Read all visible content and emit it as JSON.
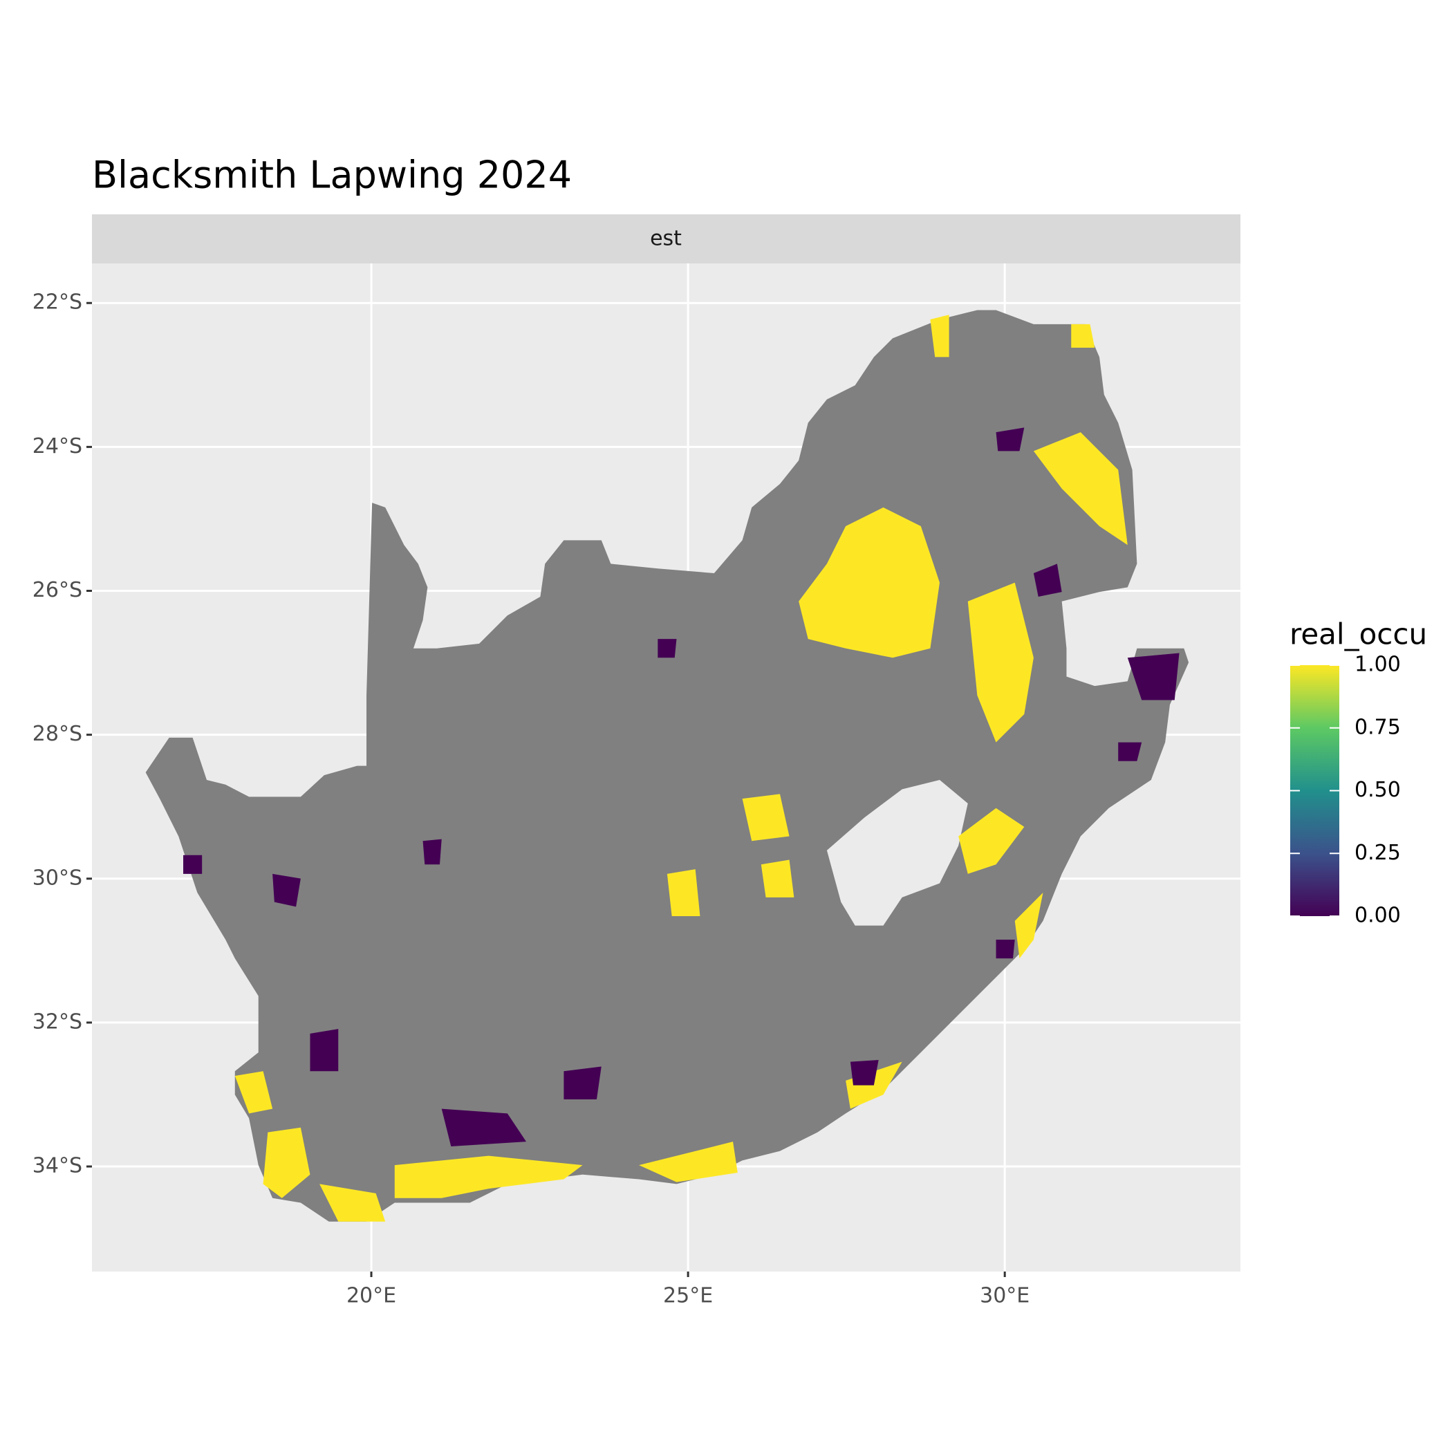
{
  "chart_data": {
    "type": "raster-map",
    "title": "Blacksmith Lapwing 2024",
    "facet": "est",
    "xlim": [
      15.59,
      33.72
    ],
    "ylim": [
      -35.46,
      -21.45
    ],
    "xticks": [
      {
        "value": 20,
        "label": "20°E"
      },
      {
        "value": 25,
        "label": "25°E"
      },
      {
        "value": 30,
        "label": "30°E"
      }
    ],
    "yticks": [
      {
        "value": -22,
        "label": "22°S"
      },
      {
        "value": -24,
        "label": "24°S"
      },
      {
        "value": -26,
        "label": "26°S"
      },
      {
        "value": -28,
        "label": "28°S"
      },
      {
        "value": -30,
        "label": "30°S"
      },
      {
        "value": -32,
        "label": "32°S"
      },
      {
        "value": -34,
        "label": "34°S"
      }
    ],
    "grid": true,
    "legend": {
      "title": "real_occu",
      "lim": [
        0,
        1
      ],
      "ticks": [
        {
          "value": 0,
          "label": "0.00"
        },
        {
          "value": 0.25,
          "label": "0.25"
        },
        {
          "value": 0.5,
          "label": "0.50"
        },
        {
          "value": 0.75,
          "label": "0.75"
        },
        {
          "value": 1,
          "label": "1.00"
        }
      ],
      "colors": [
        "#440154",
        "#3b528b",
        "#21908c",
        "#5dc963",
        "#fde725"
      ]
    }
  }
}
